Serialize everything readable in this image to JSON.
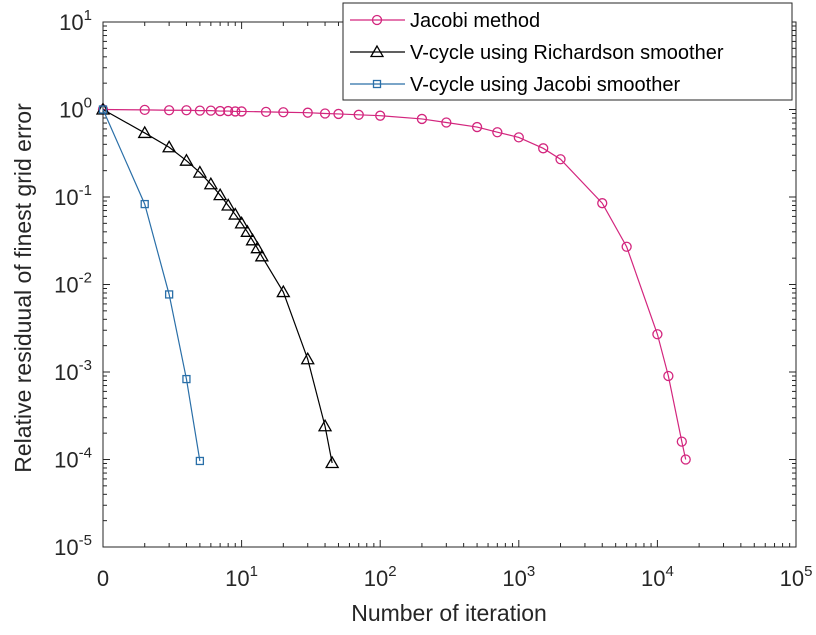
{
  "chart_data": {
    "type": "line",
    "xlabel": "Number of iteration",
    "ylabel": "Relative residuual of finest grid error",
    "xscale": "log",
    "yscale": "log",
    "xlim": [
      1,
      100000
    ],
    "ylim": [
      1e-05,
      10
    ],
    "grid": false,
    "legend_position": "top-right",
    "x_ticks": [
      {
        "base": "0",
        "exp": ""
      },
      {
        "base": "10",
        "exp": "1"
      },
      {
        "base": "10",
        "exp": "2"
      },
      {
        "base": "10",
        "exp": "3"
      },
      {
        "base": "10",
        "exp": "4"
      },
      {
        "base": "10",
        "exp": "5"
      }
    ],
    "y_ticks": [
      {
        "base": "10",
        "exp": "-5"
      },
      {
        "base": "10",
        "exp": "-4"
      },
      {
        "base": "10",
        "exp": "-3"
      },
      {
        "base": "10",
        "exp": "-2"
      },
      {
        "base": "10",
        "exp": "-1"
      },
      {
        "base": "10",
        "exp": "0"
      },
      {
        "base": "10",
        "exp": "1"
      }
    ],
    "series": [
      {
        "name": "Jacobi method",
        "color": "#d3267e",
        "marker": "circle",
        "x": [
          1,
          2,
          3,
          4,
          5,
          6,
          7,
          8,
          9,
          10,
          15,
          20,
          30,
          40,
          50,
          70,
          100,
          200,
          300,
          500,
          700,
          1000,
          1500,
          2000,
          4000,
          6000,
          10000,
          12000,
          15000,
          16000
        ],
        "y": [
          1.0,
          0.99,
          0.98,
          0.98,
          0.97,
          0.97,
          0.96,
          0.96,
          0.95,
          0.95,
          0.94,
          0.93,
          0.92,
          0.9,
          0.89,
          0.87,
          0.85,
          0.78,
          0.71,
          0.63,
          0.55,
          0.48,
          0.36,
          0.27,
          0.085,
          0.027,
          0.0027,
          0.0009,
          0.00016,
          0.0001
        ]
      },
      {
        "name": "V-cycle using Richardson smoother",
        "color": "#000000",
        "marker": "triangle",
        "x": [
          1,
          2,
          3,
          4,
          5,
          6,
          7,
          8,
          9,
          10,
          11,
          12,
          13,
          14,
          20,
          30,
          40,
          45
        ],
        "y": [
          1.0,
          0.54,
          0.37,
          0.26,
          0.19,
          0.14,
          0.105,
          0.08,
          0.063,
          0.05,
          0.04,
          0.032,
          0.026,
          0.021,
          0.0082,
          0.0014,
          0.00024,
          9.12e-05
        ]
      },
      {
        "name": "V-cycle using Jacobi smoother",
        "color": "#2a6fa8",
        "marker": "square",
        "x": [
          1,
          2,
          3,
          4,
          5
        ],
        "y": [
          1.0,
          0.083,
          0.0077,
          0.00083,
          9.62e-05
        ]
      }
    ]
  }
}
